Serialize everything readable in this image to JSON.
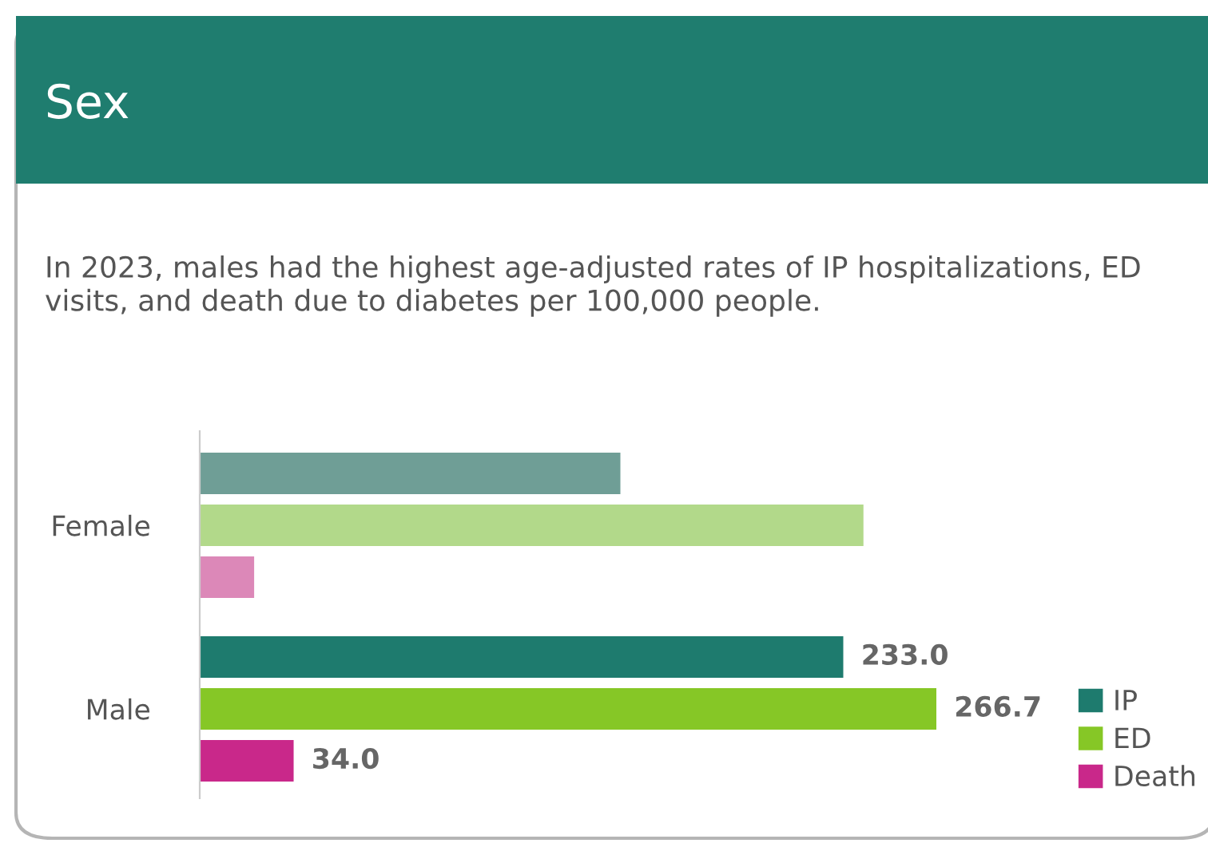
{
  "chart_data": {
    "type": "bar",
    "orientation": "horizontal",
    "title": "Sex",
    "subtitle": "In 2023, males had the highest age-adjusted rates of IP hospitalizations, ED visits, and death due to diabetes per 100,000 people.",
    "categories": [
      "Female",
      "Male"
    ],
    "series": [
      {
        "name": "IP",
        "color": "#1e7b6e",
        "colors": [
          "#6f9e96",
          "#1e7b6e"
        ],
        "values": [
          152.3,
          233.0
        ],
        "value_labels": [
          null,
          "233.0"
        ]
      },
      {
        "name": "ED",
        "color": "#86c726",
        "colors": [
          "#b2d98a",
          "#86c726"
        ],
        "values": [
          240.3,
          266.7
        ],
        "value_labels": [
          null,
          "266.7"
        ]
      },
      {
        "name": "Death",
        "color": "#c9288a",
        "colors": [
          "#dc88b8",
          "#c9288a"
        ],
        "values": [
          19.7,
          34.0
        ],
        "value_labels": [
          null,
          "34.0"
        ]
      }
    ],
    "legend": "bottom right",
    "grid": false,
    "tick_labels": "y"
  }
}
